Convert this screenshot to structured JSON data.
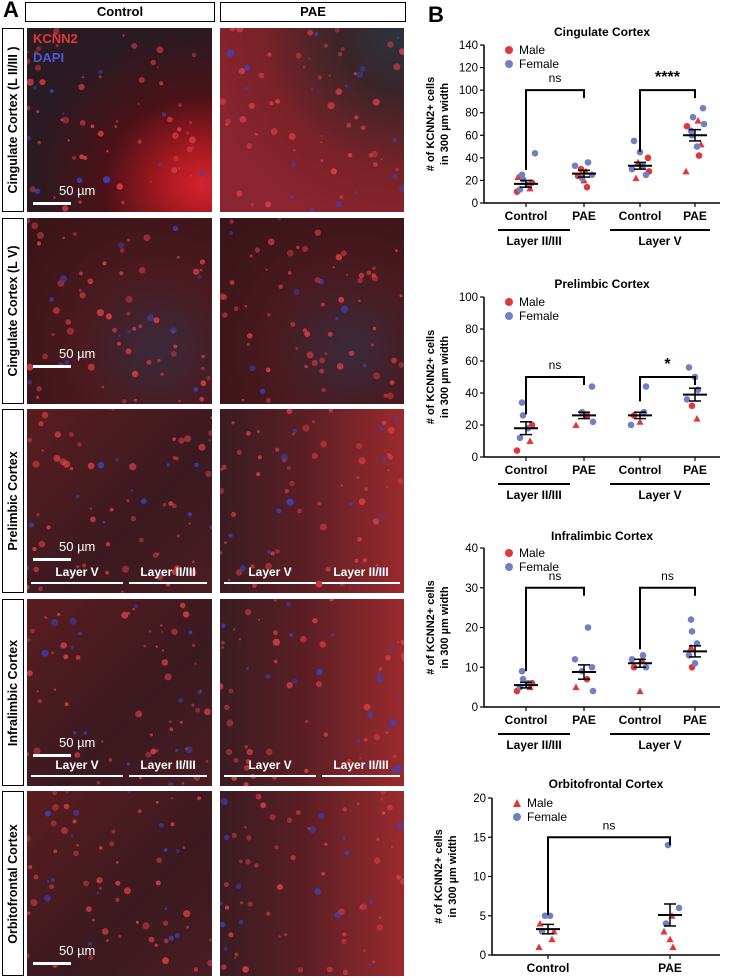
{
  "panel_a": {
    "letter": "A",
    "col_headers": [
      "Control",
      "PAE"
    ],
    "stain_labels": [
      {
        "text": "KCNN2",
        "color": "#e0383a"
      },
      {
        "text": "DAPI",
        "color": "#4a5ad8"
      }
    ],
    "row_labels": [
      "Cingulate Cortex (L II/III )",
      "Cingulate Cortex (L V)",
      "Prelimbic Cortex",
      "Infralimbic Cortex",
      "Orbitofrontal Cortex"
    ],
    "scale_bar": "50 µm",
    "layer_labels": [
      "Layer V",
      "Layer II/III"
    ]
  },
  "panel_b": {
    "letter": "B"
  },
  "colors": {
    "male": "#e0383a",
    "female": "#7080c4",
    "mean": "#000000"
  },
  "chart_data": [
    {
      "type": "scatter",
      "title": "Cingulate Cortex",
      "ylabel": "# of KCNN2+ cells\nin 300 µm width",
      "ylim": [
        0,
        140
      ],
      "yticks": [
        0,
        20,
        40,
        60,
        80,
        100,
        120,
        140
      ],
      "categories": [
        "Control",
        "PAE",
        "Control",
        "PAE"
      ],
      "groups": [
        "Layer II/III",
        "Layer V"
      ],
      "legend": [
        "Male",
        "Female"
      ],
      "male_marker": "circle",
      "sig": [
        {
          "from": 0,
          "to": 1,
          "label": "ns",
          "y": 100
        },
        {
          "from": 2,
          "to": 3,
          "label": "****",
          "y": 100
        }
      ],
      "series": [
        {
          "name": "Male",
          "points": [
            [
              0,
              10
            ],
            [
              0,
              13
            ],
            [
              0,
              18
            ],
            [
              0,
              23
            ],
            [
              1,
              14
            ],
            [
              1,
              20
            ],
            [
              1,
              24
            ],
            [
              1,
              28
            ],
            [
              1,
              30
            ],
            [
              2,
              22
            ],
            [
              2,
              28
            ],
            [
              2,
              36
            ],
            [
              2,
              40
            ],
            [
              3,
              28
            ],
            [
              3,
              42
            ],
            [
              3,
              52
            ],
            [
              3,
              68
            ],
            [
              3,
              73
            ]
          ]
        },
        {
          "name": "Female",
          "points": [
            [
              0,
              12
            ],
            [
              0,
              16
            ],
            [
              0,
              21
            ],
            [
              0,
              25
            ],
            [
              0,
              44
            ],
            [
              1,
              22
            ],
            [
              1,
              25
            ],
            [
              1,
              33
            ],
            [
              1,
              36
            ],
            [
              2,
              25
            ],
            [
              2,
              30
            ],
            [
              2,
              33
            ],
            [
              2,
              45
            ],
            [
              2,
              55
            ],
            [
              3,
              50
            ],
            [
              3,
              60
            ],
            [
              3,
              64
            ],
            [
              3,
              70
            ],
            [
              3,
              76
            ],
            [
              3,
              84
            ]
          ]
        }
      ],
      "means": [
        17,
        26,
        33,
        60
      ],
      "sem": [
        3,
        3,
        3,
        5
      ]
    },
    {
      "type": "scatter",
      "title": "Prelimbic Cortex",
      "ylabel": "# of KCNN2+ cells\nin 300 µm width",
      "ylim": [
        0,
        100
      ],
      "yticks": [
        0,
        20,
        40,
        60,
        80,
        100
      ],
      "categories": [
        "Control",
        "PAE",
        "Control",
        "PAE"
      ],
      "groups": [
        "Layer II/III",
        "Layer V"
      ],
      "legend": [
        "Male",
        "Female"
      ],
      "male_marker": "circle",
      "sig": [
        {
          "from": 0,
          "to": 1,
          "label": "ns",
          "y": 50
        },
        {
          "from": 2,
          "to": 3,
          "label": "*",
          "y": 50
        }
      ],
      "series": [
        {
          "name": "Male",
          "points": [
            [
              0,
              4
            ],
            [
              0,
              10
            ],
            [
              0,
              20
            ],
            [
              1,
              20
            ],
            [
              1,
              26
            ],
            [
              2,
              22
            ],
            [
              2,
              26
            ],
            [
              3,
              24
            ],
            [
              3,
              32
            ]
          ]
        },
        {
          "name": "Female",
          "points": [
            [
              0,
              12
            ],
            [
              0,
              18
            ],
            [
              0,
              26
            ],
            [
              0,
              34
            ],
            [
              1,
              22
            ],
            [
              1,
              28
            ],
            [
              1,
              44
            ],
            [
              2,
              20
            ],
            [
              2,
              28
            ],
            [
              2,
              44
            ],
            [
              3,
              36
            ],
            [
              3,
              42
            ],
            [
              3,
              50
            ],
            [
              3,
              56
            ]
          ]
        }
      ],
      "means": [
        18,
        26,
        26,
        39
      ],
      "sem": [
        4,
        2,
        2,
        4
      ]
    },
    {
      "type": "scatter",
      "title": "Infralimbic Cortex",
      "ylabel": "# of KCNN2+ cells\nin 300 µm width",
      "ylim": [
        0,
        40
      ],
      "yticks": [
        0,
        10,
        20,
        30,
        40
      ],
      "categories": [
        "Control",
        "PAE",
        "Control",
        "PAE"
      ],
      "groups": [
        "Layer II/III",
        "Layer V"
      ],
      "legend": [
        "Male",
        "Female"
      ],
      "male_marker": "circle",
      "sig": [
        {
          "from": 0,
          "to": 1,
          "label": "ns",
          "y": 30
        },
        {
          "from": 2,
          "to": 3,
          "label": "ns",
          "y": 30
        }
      ],
      "series": [
        {
          "name": "Male",
          "points": [
            [
              0,
              4
            ],
            [
              0,
              5
            ],
            [
              0,
              6
            ],
            [
              1,
              5
            ],
            [
              1,
              7
            ],
            [
              2,
              4
            ],
            [
              2,
              10
            ],
            [
              2,
              12
            ],
            [
              3,
              10
            ],
            [
              3,
              15
            ]
          ]
        },
        {
          "name": "Female",
          "points": [
            [
              0,
              5
            ],
            [
              0,
              6
            ],
            [
              0,
              7
            ],
            [
              0,
              9
            ],
            [
              1,
              4
            ],
            [
              1,
              9
            ],
            [
              1,
              10
            ],
            [
              1,
              12
            ],
            [
              1,
              20
            ],
            [
              2,
              10
            ],
            [
              2,
              12
            ],
            [
              2,
              13
            ],
            [
              3,
              11
            ],
            [
              3,
              13
            ],
            [
              3,
              16
            ],
            [
              3,
              19
            ],
            [
              3,
              22
            ]
          ]
        }
      ],
      "means": [
        5.5,
        8.8,
        11,
        14
      ],
      "sem": [
        0.7,
        1.8,
        1,
        1.4
      ]
    },
    {
      "type": "scatter",
      "title": "Orbitofrontal Cortex",
      "ylabel": "# of KCNN2+ cells\nin 300 µm width",
      "ylim": [
        0,
        20
      ],
      "yticks": [
        0,
        5,
        10,
        15,
        20
      ],
      "categories": [
        "Control",
        "PAE"
      ],
      "groups": [],
      "legend": [
        "Male",
        "Female"
      ],
      "male_marker": "triangle",
      "sig": [
        {
          "from": 0,
          "to": 1,
          "label": "ns",
          "y": 15
        }
      ],
      "series": [
        {
          "name": "Male",
          "points": [
            [
              0,
              1
            ],
            [
              0,
              2
            ],
            [
              0,
              3
            ],
            [
              0,
              4
            ],
            [
              1,
              1
            ],
            [
              1,
              2
            ],
            [
              1,
              3
            ],
            [
              1,
              5
            ]
          ]
        },
        {
          "name": "Female",
          "points": [
            [
              0,
              3
            ],
            [
              0,
              5
            ],
            [
              0,
              5
            ],
            [
              1,
              4
            ],
            [
              1,
              6
            ],
            [
              1,
              14
            ]
          ]
        }
      ],
      "means": [
        3.3,
        5.1
      ],
      "sem": [
        0.6,
        1.4
      ]
    }
  ]
}
